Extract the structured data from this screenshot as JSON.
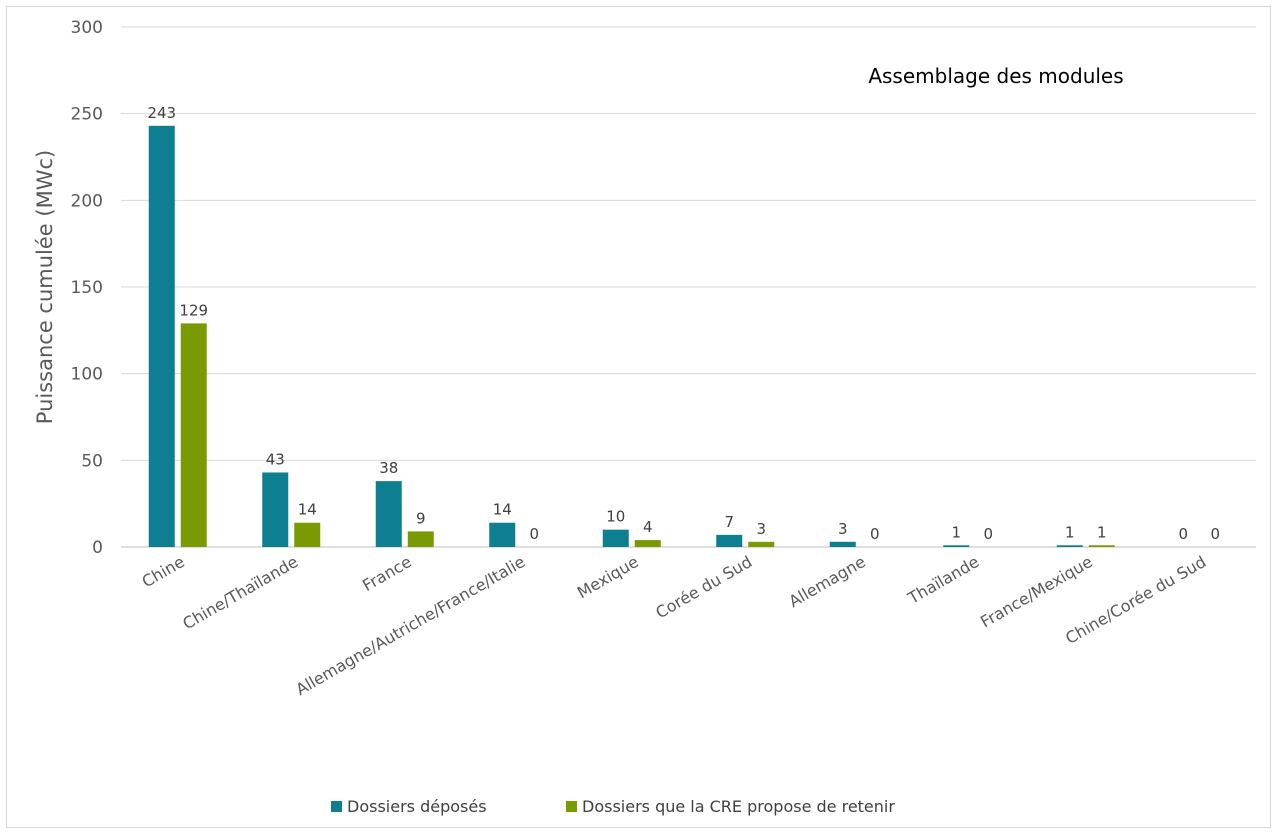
{
  "chart_data": {
    "type": "bar",
    "title": "Assemblage des modules",
    "xlabel": "",
    "ylabel": "Puissance cumulée (MWc)",
    "ylim": [
      0,
      300
    ],
    "yticks": [
      0,
      50,
      100,
      150,
      200,
      250,
      300
    ],
    "grid": true,
    "legend_position": "bottom",
    "categories": [
      "Chine",
      "Chine/Thaïlande",
      "France",
      "Allemagne/Autriche/France/Italie",
      "Mexique",
      "Corée du Sud",
      "Allemagne",
      "Thaïlande",
      "France/Mexique",
      "Chine/Corée du Sud"
    ],
    "series": [
      {
        "name": "Dossiers déposés",
        "color": "#0e7f91",
        "values": [
          243,
          43,
          38,
          14,
          10,
          7,
          3,
          1,
          1,
          0
        ]
      },
      {
        "name": "Dossiers que la CRE propose de retenir",
        "color": "#7a9a01",
        "values": [
          129,
          14,
          9,
          0,
          4,
          3,
          0,
          0,
          1,
          0
        ]
      }
    ]
  }
}
